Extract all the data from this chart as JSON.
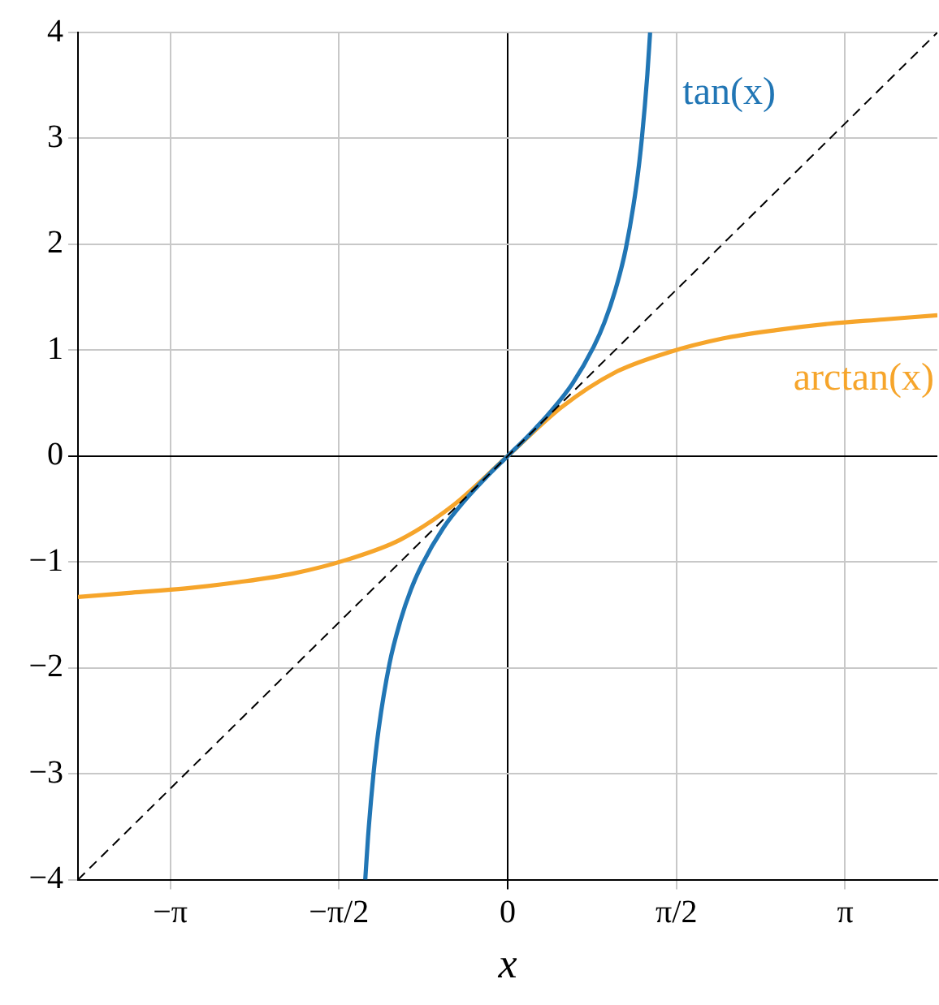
{
  "chart_data": {
    "type": "line",
    "xlabel": "x",
    "grid": true,
    "legend": false,
    "marker": "none",
    "xlim": [
      -4,
      4
    ],
    "ylim": [
      -4,
      4
    ],
    "xticks": [
      {
        "value": -3.1416,
        "label": "−π"
      },
      {
        "value": -1.5708,
        "label": "−π/2"
      },
      0,
      {
        "value": 1.5708,
        "label": "π/2"
      },
      {
        "value": 3.1416,
        "label": "π"
      }
    ],
    "yticks": [
      {
        "value": -4,
        "label": "−4"
      },
      {
        "value": -3,
        "label": "−3"
      },
      {
        "value": -2,
        "label": "−2"
      },
      {
        "value": -1,
        "label": "−1"
      },
      0,
      1,
      2,
      3,
      4
    ],
    "series": [
      {
        "line_style": "dashed",
        "color": "#000000",
        "x": [
          -4,
          4
        ],
        "values": [
          -4,
          4
        ]
      },
      {
        "name": "tan(x)",
        "line_style": "solid",
        "color": "#2176b5",
        "x": [
          -1.3258,
          -1.3,
          -1.25,
          -1.2,
          -1.1,
          -1.0,
          -0.9,
          -0.8,
          -0.6,
          -0.4,
          -0.2,
          0,
          0.2,
          0.4,
          0.6,
          0.8,
          0.9,
          1.0,
          1.1,
          1.2,
          1.25,
          1.3,
          1.3258
        ],
        "values": [
          -4,
          -3.6,
          -3.01,
          -2.57,
          -1.96,
          -1.56,
          -1.26,
          -1.03,
          -0.68,
          -0.42,
          -0.2,
          0,
          0.2,
          0.42,
          0.68,
          1.03,
          1.26,
          1.56,
          1.96,
          2.57,
          3.01,
          3.6,
          4
        ]
      },
      {
        "name": "arctan(x)",
        "line_style": "solid",
        "color": "#f6a52b",
        "x": [
          -4,
          -3.5,
          -3,
          -2.5,
          -2,
          -1.5,
          -1,
          -0.5,
          0,
          0.5,
          1,
          1.5,
          2,
          2.5,
          3,
          3.5,
          4
        ],
        "values": [
          -1.33,
          -1.29,
          -1.25,
          -1.19,
          -1.11,
          -0.98,
          -0.79,
          -0.46,
          0,
          0.46,
          0.79,
          0.98,
          1.11,
          1.19,
          1.25,
          1.29,
          1.33
        ]
      }
    ]
  }
}
